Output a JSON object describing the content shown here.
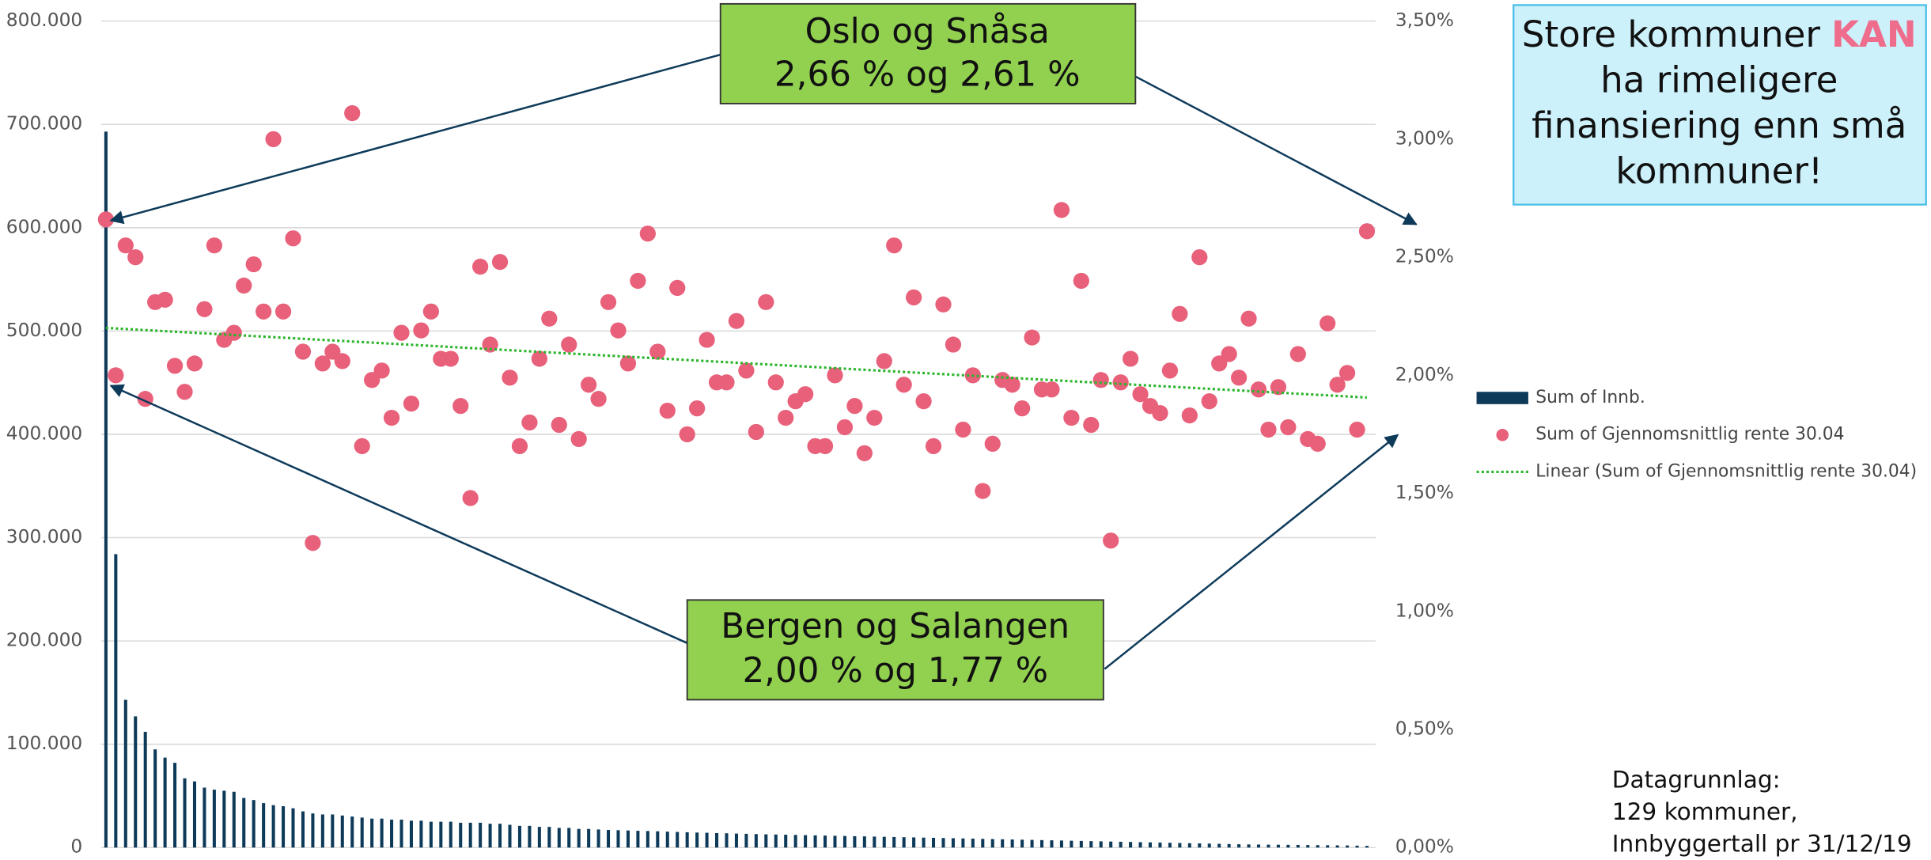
{
  "chart_data": {
    "type": "bar",
    "ylim": [
      0,
      800000
    ],
    "yticks": [
      0,
      {
        "value": 100000,
        "label": "100.000"
      },
      {
        "value": 200000,
        "label": "200.000"
      },
      {
        "value": 300000,
        "label": "300.000"
      },
      {
        "value": 400000,
        "label": "400.000"
      },
      {
        "value": 500000,
        "label": "500.000"
      },
      {
        "value": 600000,
        "label": "600.000"
      },
      {
        "value": 700000,
        "label": "700.000"
      },
      {
        "value": 800000,
        "label": "800.000"
      }
    ],
    "y2lim": [
      0,
      3.5
    ],
    "y2ticks": [
      {
        "value": 0,
        "label": "0,00%"
      },
      {
        "value": 0.5,
        "label": "0,50%"
      },
      {
        "value": 1,
        "label": "1,00%"
      },
      {
        "value": 1.5,
        "label": "1,50%"
      },
      {
        "value": 2,
        "label": "2,00%"
      },
      {
        "value": 2.5,
        "label": "2,50%"
      },
      {
        "value": 3,
        "label": "3,00%"
      },
      {
        "value": 3.5,
        "label": "3,50%"
      }
    ],
    "grid": true,
    "legend": "right",
    "series": [
      {
        "name": "Sum of Innb.",
        "type": "bar",
        "color": "#0e3a5a",
        "values": [
          693000,
          284000,
          143000,
          127000,
          112000,
          95000,
          87000,
          82000,
          67000,
          64000,
          58000,
          56000,
          55000,
          54000,
          48000,
          46000,
          43000,
          41000,
          40000,
          38000,
          35000,
          33000,
          32000,
          32000,
          31000,
          30000,
          29000,
          28000,
          28000,
          27000,
          27000,
          26000,
          26000,
          25000,
          25000,
          25000,
          24000,
          24000,
          24000,
          23000,
          23000,
          22000,
          21000,
          21000,
          20000,
          20000,
          19000,
          19000,
          18000,
          18000,
          17500,
          17000,
          16800,
          16500,
          16200,
          16000,
          15700,
          15400,
          15100,
          14800,
          14500,
          14300,
          14000,
          13800,
          13500,
          13300,
          13000,
          12800,
          12600,
          12400,
          12200,
          12000,
          11800,
          11600,
          11400,
          11200,
          11000,
          10800,
          10600,
          10400,
          10200,
          10000,
          9800,
          9600,
          9400,
          9200,
          9000,
          8800,
          8600,
          8400,
          8200,
          8000,
          7800,
          7600,
          7400,
          7200,
          7000,
          6800,
          6600,
          6400,
          6200,
          6000,
          5800,
          5600,
          5400,
          5200,
          5000,
          4800,
          4600,
          4400,
          4200,
          4000,
          3800,
          3600,
          3400,
          3200,
          3000,
          2900,
          2800,
          2700,
          2600,
          2500,
          2400,
          2300,
          2200,
          2100,
          2000,
          1800,
          1600
        ]
      },
      {
        "name": "Sum of Gjennomsnittlig rente 30.04",
        "type": "scatter",
        "axis": "y2",
        "color": "#e8607a",
        "values": [
          2.66,
          2.0,
          2.55,
          2.5,
          1.9,
          2.31,
          2.32,
          2.04,
          1.93,
          2.05,
          2.28,
          2.55,
          2.15,
          2.18,
          2.38,
          2.47,
          2.27,
          3.0,
          2.27,
          2.58,
          2.1,
          1.29,
          2.05,
          2.1,
          2.06,
          3.11,
          1.7,
          1.98,
          2.02,
          1.82,
          2.18,
          1.88,
          2.19,
          2.27,
          2.07,
          2.07,
          1.87,
          1.48,
          2.46,
          2.13,
          2.48,
          1.99,
          1.7,
          1.8,
          2.07,
          2.24,
          1.79,
          2.13,
          1.73,
          1.96,
          1.9,
          2.31,
          2.19,
          2.05,
          2.4,
          2.6,
          2.1,
          1.85,
          2.37,
          1.75,
          1.86,
          2.15,
          1.97,
          1.97,
          2.23,
          2.02,
          1.76,
          2.31,
          1.97,
          1.82,
          1.89,
          1.92,
          1.7,
          1.7,
          2.0,
          1.78,
          1.87,
          1.67,
          1.82,
          2.06,
          2.55,
          1.96,
          2.33,
          1.89,
          1.7,
          2.3,
          2.13,
          1.77,
          2.0,
          1.51,
          1.71,
          1.98,
          1.96,
          1.86,
          2.16,
          1.94,
          1.94,
          2.7,
          1.82,
          2.4,
          1.79,
          1.98,
          1.3,
          1.97,
          2.07,
          1.92,
          1.87,
          1.84,
          2.02,
          2.26,
          1.83,
          2.5,
          1.89,
          2.05,
          2.09,
          1.99,
          2.24,
          1.94,
          1.77,
          1.95,
          1.78,
          2.09,
          1.73,
          1.71,
          2.22,
          1.96,
          2.01,
          1.77,
          2.61
        ]
      }
    ],
    "trendline": {
      "name": "Linear (Sum of Gjennomsnittlig rente 30.04)",
      "color": "#2db52d",
      "of": 1
    },
    "annotations": [
      {
        "lines": [
          "Oslo og Snåsa",
          "2,66 % og 2,61 %"
        ]
      },
      {
        "lines": [
          "Bergen og Salangen",
          "2,00 % og 1,77 %"
        ]
      }
    ],
    "callout": {
      "before": "Store kommuner",
      "emphasis": "KAN",
      "lines": [
        "ha rimeligere",
        "finansiering enn små",
        "kommuner!"
      ]
    },
    "footnote": [
      "Datagrunnlag:",
      "129 kommuner,",
      "Innbyggertall pr 31/12/19"
    ]
  }
}
